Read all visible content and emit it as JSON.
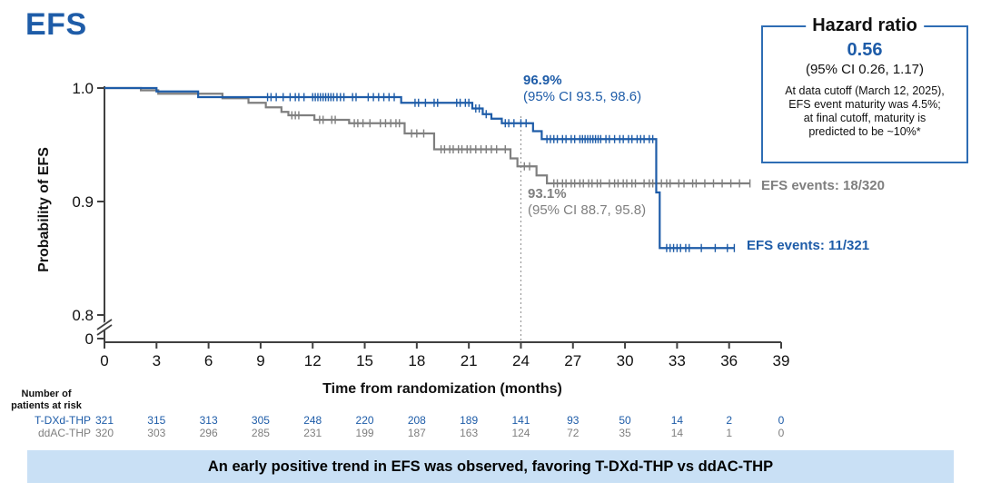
{
  "banner": {
    "text": "An early positive trend in EFS was observed, favoring T-DXd-THP vs ddAC-THP"
  },
  "hazard_box": {
    "title": "Hazard ratio",
    "value": "0.56",
    "ci": "(95% CI 0.26, 1.17)",
    "note_lines": [
      "At data cutoff (March 12, 2025),",
      "EFS event maturity was 4.5%;",
      "at final cutoff, maturity is",
      "predicted to be ~10%*"
    ]
  },
  "chart_data": {
    "type": "line",
    "subtype": "kaplan-meier-step",
    "title": "EFS",
    "xlabel": "Time from randomization (months)",
    "ylabel": "Probability of EFS",
    "x_ticks": [
      0,
      3,
      6,
      9,
      12,
      15,
      18,
      21,
      24,
      27,
      30,
      33,
      36,
      39
    ],
    "xlim": [
      0,
      39
    ],
    "y_tick_labels": [
      "1.0",
      "0.9",
      "0.8",
      "0"
    ],
    "y_axis_break": true,
    "grid": false,
    "reference_line_month": 24,
    "axis_color": "#404040",
    "series": [
      {
        "name": "ddAC-THP",
        "color": "#7f7f7f",
        "annotation": {
          "value": "93.1%",
          "ci": "(95% CI 88.7, 95.8)",
          "at_month": 24
        },
        "events_label": "EFS events: 18/320",
        "steps": [
          [
            0,
            1.0
          ],
          [
            2.1,
            1.0
          ],
          [
            2.1,
            0.998
          ],
          [
            3.1,
            0.998
          ],
          [
            3.1,
            0.995
          ],
          [
            6.8,
            0.995
          ],
          [
            6.8,
            0.991
          ],
          [
            8.3,
            0.991
          ],
          [
            8.3,
            0.987
          ],
          [
            9.3,
            0.987
          ],
          [
            9.3,
            0.983
          ],
          [
            10.2,
            0.983
          ],
          [
            10.2,
            0.979
          ],
          [
            10.6,
            0.979
          ],
          [
            10.6,
            0.976
          ],
          [
            12.1,
            0.976
          ],
          [
            12.1,
            0.972
          ],
          [
            14.1,
            0.972
          ],
          [
            14.1,
            0.969
          ],
          [
            17.3,
            0.969
          ],
          [
            17.3,
            0.96
          ],
          [
            19.0,
            0.96
          ],
          [
            19.0,
            0.946
          ],
          [
            23.4,
            0.946
          ],
          [
            23.4,
            0.938
          ],
          [
            23.8,
            0.938
          ],
          [
            23.8,
            0.931
          ],
          [
            24.9,
            0.931
          ],
          [
            24.9,
            0.923
          ],
          [
            25.5,
            0.923
          ],
          [
            25.5,
            0.916
          ],
          [
            37.2,
            0.916
          ]
        ],
        "censor_months": [
          10.8,
          11.0,
          11.2,
          12.4,
          12.6,
          13.1,
          13.3,
          14.4,
          14.6,
          14.9,
          15.3,
          15.9,
          16.2,
          16.5,
          16.8,
          17.0,
          17.7,
          18.0,
          18.4,
          19.4,
          19.6,
          19.9,
          20.1,
          20.4,
          20.6,
          20.9,
          21.1,
          21.4,
          21.7,
          22.0,
          22.3,
          22.6,
          23.1,
          24.2,
          24.5,
          25.9,
          26.1,
          26.4,
          26.6,
          26.9,
          27.1,
          27.4,
          27.6,
          27.9,
          28.1,
          28.4,
          28.6,
          29.1,
          29.4,
          29.6,
          29.9,
          30.1,
          30.4,
          30.6,
          31.1,
          31.4,
          31.6,
          32.1,
          32.4,
          32.6,
          33.1,
          33.4,
          33.9,
          34.1,
          34.6,
          35.1,
          35.6,
          36.1,
          36.6,
          37.2
        ]
      },
      {
        "name": "T-DXd-THP",
        "color": "#1e5ca8",
        "annotation": {
          "value": "96.9%",
          "ci": "(95% CI 93.5, 98.6)",
          "at_month": 24
        },
        "events_label": "EFS events: 11/321",
        "steps": [
          [
            0,
            1.0
          ],
          [
            3.0,
            1.0
          ],
          [
            3.0,
            0.997
          ],
          [
            5.4,
            0.997
          ],
          [
            5.4,
            0.992
          ],
          [
            17.1,
            0.992
          ],
          [
            17.1,
            0.987
          ],
          [
            21.2,
            0.987
          ],
          [
            21.2,
            0.982
          ],
          [
            21.8,
            0.982
          ],
          [
            21.8,
            0.977
          ],
          [
            22.3,
            0.977
          ],
          [
            22.3,
            0.973
          ],
          [
            22.9,
            0.973
          ],
          [
            22.9,
            0.969
          ],
          [
            24.7,
            0.969
          ],
          [
            24.7,
            0.962
          ],
          [
            25.2,
            0.962
          ],
          [
            25.2,
            0.955
          ],
          [
            31.8,
            0.955
          ],
          [
            31.8,
            0.908
          ],
          [
            32.0,
            0.908
          ],
          [
            32.0,
            0.859
          ],
          [
            36.3,
            0.859
          ]
        ],
        "censor_months": [
          9.4,
          9.6,
          9.9,
          10.3,
          10.7,
          11.0,
          11.2,
          11.5,
          12.0,
          12.15,
          12.3,
          12.45,
          12.6,
          12.75,
          12.9,
          13.05,
          13.2,
          13.4,
          13.6,
          13.8,
          14.3,
          14.5,
          15.2,
          15.5,
          15.8,
          16.1,
          16.4,
          16.7,
          17.9,
          18.1,
          18.5,
          19.0,
          19.2,
          20.3,
          20.5,
          20.8,
          21.0,
          21.4,
          21.6,
          22.0,
          23.1,
          23.3,
          23.6,
          24.0,
          24.3,
          25.5,
          25.7,
          25.9,
          26.1,
          26.4,
          26.6,
          26.9,
          27.1,
          27.4,
          27.55,
          27.7,
          27.85,
          28.0,
          28.15,
          28.3,
          28.45,
          28.6,
          28.9,
          29.1,
          29.4,
          29.7,
          29.9,
          30.2,
          30.4,
          30.7,
          30.9,
          31.1,
          31.4,
          31.6,
          32.4,
          32.6,
          32.8,
          33.0,
          33.2,
          33.5,
          33.7,
          34.4,
          35.2,
          35.9,
          36.3
        ]
      }
    ]
  },
  "risk_table": {
    "header_line1": "Number of",
    "header_line2": "patients at risk",
    "rows": [
      {
        "label": "T-DXd-THP",
        "color": "#1e5ca8",
        "values": [
          "321",
          "315",
          "313",
          "305",
          "248",
          "220",
          "208",
          "189",
          "141",
          "93",
          "50",
          "14",
          "2",
          "0"
        ]
      },
      {
        "label": "ddAC-THP",
        "color": "#7f7f7f",
        "values": [
          "320",
          "303",
          "296",
          "285",
          "231",
          "199",
          "187",
          "163",
          "124",
          "72",
          "35",
          "14",
          "1",
          "0"
        ]
      }
    ]
  }
}
